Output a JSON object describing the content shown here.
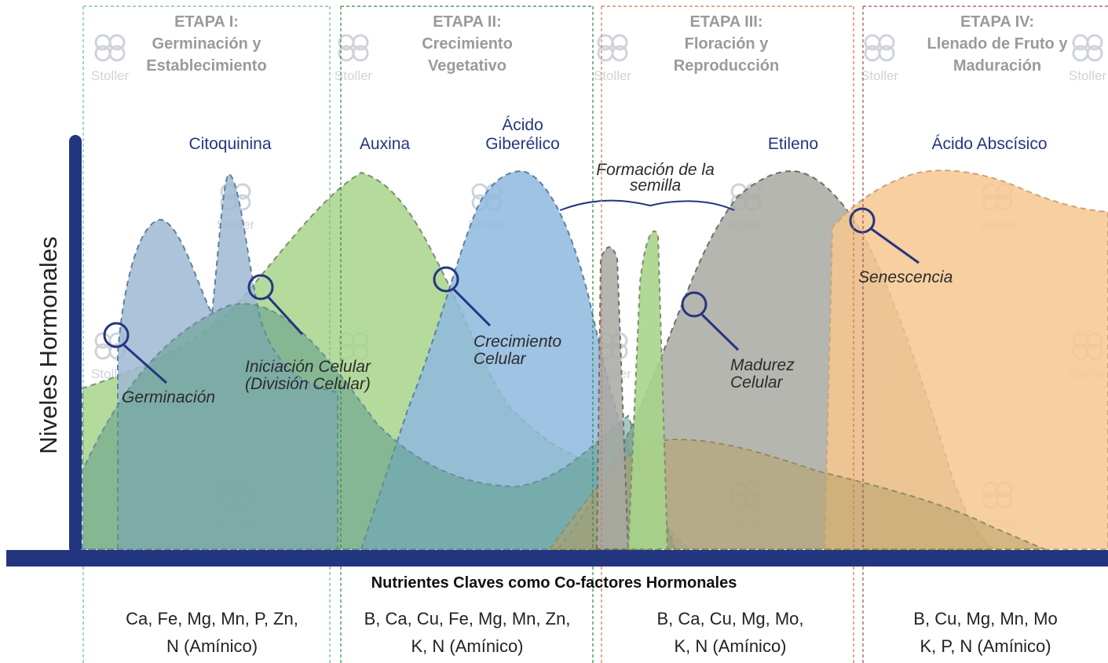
{
  "stages": [
    {
      "title": "ETAPA I:",
      "subtitle": "Germinación y Establecimiento",
      "nutrients_line1": "Ca, Fe, Mg, Mn, P, Zn,",
      "nutrients_line2": "N (Amínico)"
    },
    {
      "title": "ETAPA II:",
      "subtitle": "Crecimiento Vegetativo",
      "nutrients_line1": "B, Ca, Cu, Fe, Mg, Mn, Zn,",
      "nutrients_line2": "K, N (Amínico)"
    },
    {
      "title": "ETAPA III:",
      "subtitle": "Floración y Reproducción",
      "nutrients_line1": "B, Ca, Cu, Mg, Mo,",
      "nutrients_line2": "K, N (Amínico)"
    },
    {
      "title": "ETAPA IV:",
      "subtitle": "Llenado de Fruto y Maduración",
      "nutrients_line1": "B, Cu, Mg, Mn, Mo",
      "nutrients_line2": "K, P, N (Amínico)"
    }
  ],
  "hormones": {
    "citoquinina": "Citoquinina",
    "auxina": "Auxina",
    "giberelico": "Ácido Giberélico",
    "etileno": "Etileno",
    "abscisico": "Ácido Abscísico"
  },
  "events": {
    "germinacion": "Germinación",
    "iniciacion": "Iniciación Celular (División Celular)",
    "crecimiento": "Crecimiento Celular",
    "madurez": "Madurez Celular",
    "senescencia": "Senescencia",
    "semilla": "Formación de la semilla"
  },
  "axes": {
    "y_title": "Niveles Hormonales",
    "x_title": "Nutrientes Claves como Co-factores Hormonales"
  },
  "watermark": "Stoller",
  "colors": {
    "axis": "#22367f",
    "auxina": "#a7d48b",
    "giberelico": "#8eb9de",
    "citoquinina": "#9fb8d3",
    "etileno": "#a9a9a2",
    "abscisico": "#f7c78f",
    "citoquinina_base": "#5f9c8a",
    "etileno_base": "#b5a26a",
    "stage1": "#6fb79f",
    "stage2": "#2e8a45",
    "stage3": "#d9704f",
    "stage4": "#a44a5e"
  }
}
